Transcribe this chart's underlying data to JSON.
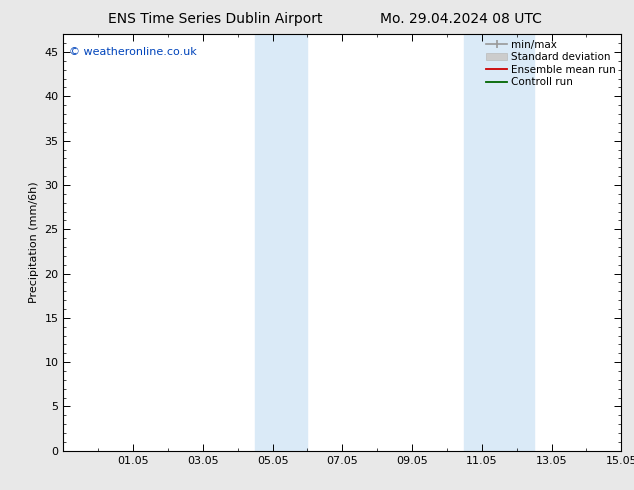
{
  "title_left": "ENS Time Series Dublin Airport",
  "title_right": "Mo. 29.04.2024 08 UTC",
  "ylabel": "Precipitation (mm/6h)",
  "watermark": "© weatheronline.co.uk",
  "watermark_color": "#0044bb",
  "background_color": "#e8e8e8",
  "plot_bg_color": "#ffffff",
  "xmin": 29.0,
  "xmax": 45.0,
  "ymin": 0,
  "ymax": 47,
  "yticks": [
    0,
    5,
    10,
    15,
    20,
    25,
    30,
    35,
    40,
    45
  ],
  "xtick_labels": [
    "01.05",
    "03.05",
    "05.05",
    "07.05",
    "09.05",
    "11.05",
    "13.05",
    "15.05"
  ],
  "xtick_positions": [
    31,
    33,
    35,
    37,
    39,
    41,
    43,
    45
  ],
  "shaded_band1_xmin": 34.5,
  "shaded_band1_xmax": 36.0,
  "shaded_band2_xmin": 40.5,
  "shaded_band2_xmax": 42.5,
  "shaded_color": "#daeaf7",
  "font_family": "DejaVu Sans",
  "title_fontsize": 10,
  "tick_fontsize": 8,
  "legend_fontsize": 7.5,
  "ylabel_fontsize": 8,
  "watermark_fontsize": 8
}
